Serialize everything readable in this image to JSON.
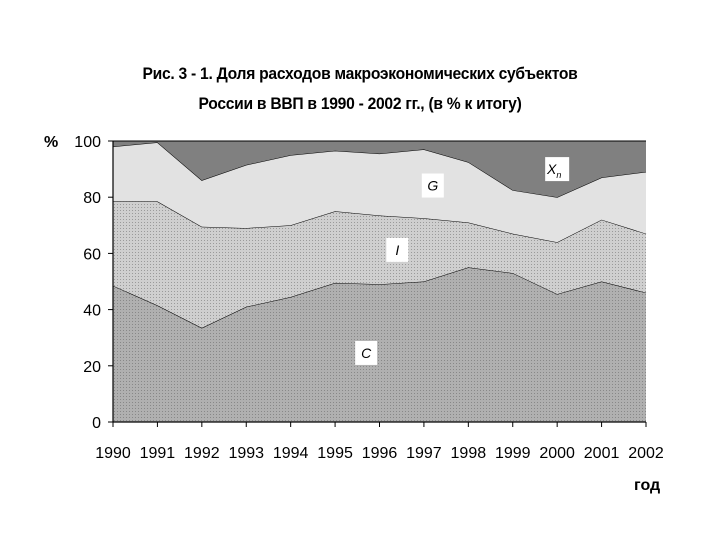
{
  "chart_data": {
    "type": "area",
    "stacked": true,
    "title_line1": "Рис. 3 - 1. Доля расходов макроэкономических субъектов",
    "title_line2": "России в ВВП в 1990 - 2002 гг., (в % к итогу)",
    "ylabel": "%",
    "xlabel": "год",
    "ylim": [
      0,
      100
    ],
    "yticks": [
      "0",
      "20",
      "40",
      "60",
      "80",
      "100"
    ],
    "x": [
      "1990",
      "1991",
      "1992",
      "1993",
      "1994",
      "1995",
      "1996",
      "1997",
      "1998",
      "1999",
      "2000",
      "2001",
      "2002"
    ],
    "series": [
      {
        "name": "C",
        "color": "#a8a8a8",
        "values": [
          48.5,
          41.5,
          33.5,
          41,
          44.5,
          49.5,
          49,
          50,
          55,
          53,
          45.5,
          50,
          46
        ]
      },
      {
        "name": "I",
        "color": "#c4c4c4",
        "values": [
          30,
          37,
          36,
          28,
          25.5,
          25.5,
          24.5,
          22.5,
          16,
          14,
          18.5,
          22,
          21
        ]
      },
      {
        "name": "G",
        "color": "#e2e2e2",
        "values": [
          19.5,
          21,
          16.5,
          22.5,
          25,
          21.5,
          22,
          24.5,
          21.5,
          15.5,
          16,
          15,
          22
        ]
      },
      {
        "name": "Xn",
        "color": "#808080",
        "values": [
          2,
          0.5,
          14,
          8.5,
          5,
          3.5,
          4.5,
          3,
          7.5,
          17.5,
          20,
          13,
          11
        ]
      }
    ],
    "series_labels": {
      "C": {
        "main": "C",
        "sub": ""
      },
      "I": {
        "main": "I",
        "sub": ""
      },
      "G": {
        "main": "G",
        "sub": ""
      },
      "Xn": {
        "main": "X",
        "sub": "n"
      }
    },
    "grid": false,
    "legend": "labels inside areas"
  }
}
